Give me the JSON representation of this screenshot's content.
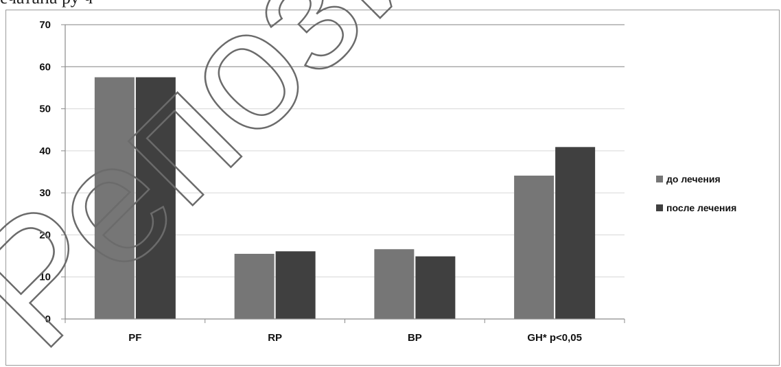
{
  "page": {
    "top_text": "ечатана      ру    ч                  "
  },
  "watermark": {
    "text": "Репозит"
  },
  "chart_data": {
    "type": "bar",
    "categories": [
      "PF",
      "RP",
      "BP",
      "GH* p<0,05"
    ],
    "series": [
      {
        "name": "до лечения",
        "color": "#767676",
        "values": [
          57.5,
          15.5,
          16.6,
          34.1
        ]
      },
      {
        "name": "после лечения",
        "color": "#404040",
        "values": [
          57.5,
          16.1,
          14.9,
          40.9
        ]
      }
    ],
    "yticks": [
      "0",
      "10",
      "20",
      "30",
      "40",
      "50",
      "60",
      "70"
    ],
    "ylim": [
      0,
      70
    ],
    "grid": true,
    "legend_position": "right",
    "title": "",
    "xlabel": "",
    "ylabel": ""
  }
}
